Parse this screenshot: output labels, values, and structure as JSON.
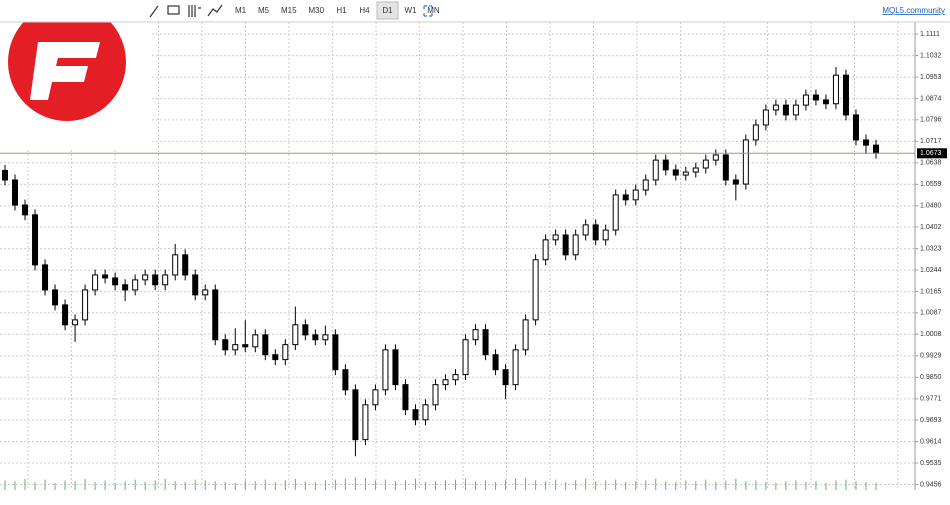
{
  "toolbar": {
    "timeframes": [
      "M1",
      "M5",
      "M15",
      "M30",
      "H1",
      "H4",
      "D1",
      "W1",
      "MN"
    ],
    "active_index": 6,
    "link": "MQL5.community"
  },
  "chart_data": {
    "type": "candlestick",
    "open": [
      1.061,
      1.0575,
      1.0483,
      1.0447,
      1.0263,
      1.0171,
      1.0116,
      1.0043,
      1.0061,
      1.0171,
      1.0226,
      1.0215,
      1.019,
      1.0171,
      1.0208,
      1.0226,
      1.019,
      1.0226,
      1.03,
      1.0226,
      1.0153,
      1.0171,
      0.9988,
      0.9951,
      0.997,
      0.9962,
      1.0006,
      0.9933,
      0.9915,
      0.997,
      1.0043,
      1.0006,
      0.9988,
      1.0006,
      0.9878,
      0.9804,
      0.9621,
      0.9749,
      0.9804,
      0.9951,
      0.9823,
      0.9731,
      0.9694,
      0.9749,
      0.9823,
      0.9841,
      0.986,
      0.9988,
      1.0025,
      0.9933,
      0.9878,
      0.9823,
      0.9951,
      1.0061,
      1.0282,
      1.0355,
      1.0373,
      1.03,
      1.0373,
      1.041,
      1.0355,
      1.0391,
      1.052,
      1.0502,
      1.0538,
      1.0575,
      1.0648,
      1.0612,
      1.0593,
      1.0604,
      1.0619,
      1.0648,
      1.0667,
      1.0575,
      1.056,
      1.0722,
      1.0777,
      1.0832,
      1.085,
      1.0814,
      1.085,
      1.0887,
      1.0869,
      1.0855,
      1.096,
      1.0814,
      1.0722,
      1.0703
    ],
    "high": [
      1.063,
      1.0595,
      1.0503,
      1.0467,
      1.0283,
      1.0191,
      1.0136,
      1.0081,
      1.0191,
      1.0246,
      1.0246,
      1.0235,
      1.021,
      1.0228,
      1.0246,
      1.0246,
      1.0246,
      1.034,
      1.032,
      1.0246,
      1.0191,
      1.0191,
      1.0008,
      1.003,
      1.006,
      1.0026,
      1.0026,
      0.9953,
      0.999,
      1.011,
      1.0063,
      1.0026,
      1.004,
      1.0026,
      0.9898,
      0.9824,
      0.9769,
      0.9824,
      0.9971,
      0.9971,
      0.9843,
      0.9751,
      0.9769,
      0.9843,
      0.9861,
      0.988,
      1.0008,
      1.0045,
      1.0045,
      0.9953,
      0.9898,
      0.9971,
      1.0081,
      1.0302,
      1.0375,
      1.0393,
      1.0393,
      1.0393,
      1.043,
      1.043,
      1.0411,
      1.054,
      1.054,
      1.0558,
      1.0595,
      1.0668,
      1.0668,
      1.0632,
      1.0624,
      1.0639,
      1.0668,
      1.0687,
      1.0687,
      1.0595,
      1.0742,
      1.0797,
      1.0852,
      1.087,
      1.087,
      1.087,
      1.0907,
      1.0907,
      1.0889,
      1.099,
      1.098,
      1.0834,
      1.0742,
      1.0723
    ],
    "low": [
      1.0555,
      1.0463,
      1.0427,
      1.0243,
      1.0151,
      1.0096,
      1.0023,
      0.998,
      1.0041,
      1.0151,
      1.0195,
      1.017,
      1.013,
      1.0151,
      1.0188,
      1.017,
      1.017,
      1.0206,
      1.0206,
      1.0133,
      1.0133,
      0.9968,
      0.9931,
      0.9931,
      0.9942,
      0.9942,
      0.9913,
      0.9895,
      0.9895,
      0.995,
      0.9986,
      0.9968,
      0.9968,
      0.9858,
      0.9784,
      0.956,
      0.9601,
      0.9729,
      0.9784,
      0.9803,
      0.9711,
      0.9674,
      0.9674,
      0.9729,
      0.9803,
      0.9821,
      0.984,
      0.9968,
      0.9913,
      0.9858,
      0.977,
      0.9803,
      0.9931,
      1.0041,
      1.0262,
      1.0335,
      1.028,
      1.028,
      1.0353,
      1.0335,
      1.0335,
      1.0371,
      1.0482,
      1.0482,
      1.0518,
      1.0555,
      1.0592,
      1.0573,
      1.0573,
      1.0584,
      1.0599,
      1.0628,
      1.0555,
      1.05,
      1.054,
      1.0702,
      1.0757,
      1.0812,
      1.0794,
      1.0794,
      1.083,
      1.0849,
      1.0835,
      1.0835,
      1.0794,
      1.0702,
      1.067,
      1.0653
    ],
    "close": [
      1.0575,
      1.0483,
      1.0447,
      1.0263,
      1.0171,
      1.0116,
      1.0043,
      1.0061,
      1.0171,
      1.0226,
      1.0215,
      1.019,
      1.0171,
      1.0208,
      1.0226,
      1.019,
      1.0226,
      1.03,
      1.0226,
      1.0153,
      1.0171,
      0.9988,
      0.9951,
      0.997,
      0.9962,
      1.0006,
      0.9933,
      0.9915,
      0.997,
      1.0043,
      1.0006,
      0.9988,
      1.0006,
      0.9878,
      0.9804,
      0.9621,
      0.9749,
      0.9804,
      0.9951,
      0.9823,
      0.9731,
      0.9694,
      0.9749,
      0.9823,
      0.9841,
      0.986,
      0.9988,
      1.0025,
      0.9933,
      0.9878,
      0.9823,
      0.9951,
      1.0061,
      1.0282,
      1.0355,
      1.0373,
      1.03,
      1.0373,
      1.041,
      1.0355,
      1.0391,
      1.052,
      1.0502,
      1.0538,
      1.0575,
      1.0648,
      1.0612,
      1.0593,
      1.0604,
      1.0619,
      1.0648,
      1.0667,
      1.0575,
      1.056,
      1.0722,
      1.0777,
      1.0832,
      1.085,
      1.0814,
      1.085,
      1.0887,
      1.0869,
      1.0855,
      1.096,
      1.0814,
      1.0722,
      1.0703,
      1.0673
    ],
    "volume": [
      60,
      55,
      70,
      50,
      65,
      45,
      60,
      55,
      70,
      50,
      60,
      45,
      55,
      65,
      50,
      60,
      70,
      55,
      50,
      65,
      60,
      55,
      50,
      45,
      60,
      55,
      65,
      50,
      60,
      70,
      55,
      50,
      60,
      65,
      70,
      80,
      75,
      60,
      65,
      55,
      60,
      70,
      50,
      55,
      60,
      65,
      70,
      55,
      60,
      50,
      65,
      70,
      75,
      60,
      55,
      65,
      50,
      60,
      70,
      55,
      60,
      65,
      50,
      55,
      60,
      70,
      55,
      50,
      60,
      55,
      65,
      50,
      60,
      70,
      55,
      60,
      50,
      45,
      55,
      60,
      50,
      55,
      45,
      60,
      65,
      55,
      50,
      45
    ],
    "vlim": [
      0,
      100
    ],
    "up_color": "#ffffff",
    "down_color": "#000000",
    "wick_color": "#000000",
    "volume_color": "#5cb85c",
    "current_price": 1.0673,
    "current_color": "#d9825b",
    "ylim": [
      0.9436,
      1.1137
    ],
    "yticks": [
      1.1111,
      1.1032,
      1.0953,
      1.0874,
      1.0796,
      1.0717,
      1.0638,
      1.0559,
      {
        "value": 1.048,
        "label": "1.0480"
      },
      1.0402,
      1.0323,
      1.0244,
      1.0165,
      1.0087,
      1.0008,
      0.9929,
      {
        "value": 0.985,
        "label": "0.9850"
      },
      0.9771,
      0.9693,
      0.9614,
      0.9535,
      0.9456
    ],
    "grid": true
  }
}
